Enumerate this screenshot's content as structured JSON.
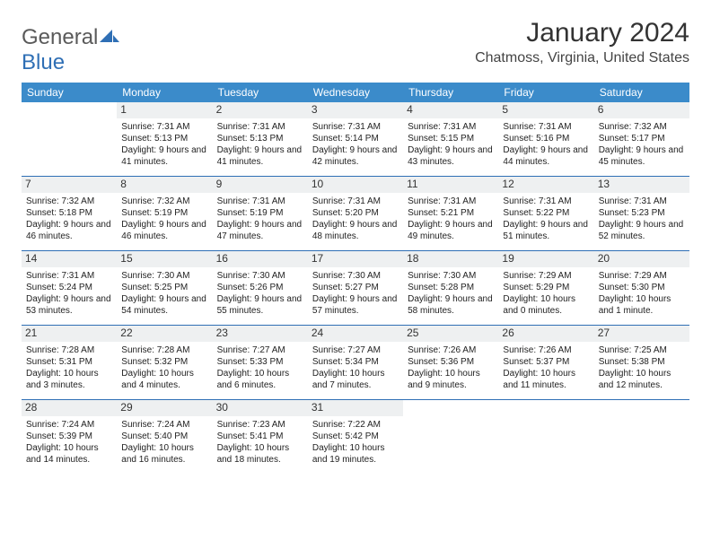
{
  "brand": {
    "general": "General",
    "blue": "Blue"
  },
  "title": "January 2024",
  "location": "Chatmoss, Virginia, United States",
  "header_bg": "#3b8bca",
  "divider_color": "#2f6fb5",
  "daynum_bg": "#eef0f1",
  "day_names": [
    "Sunday",
    "Monday",
    "Tuesday",
    "Wednesday",
    "Thursday",
    "Friday",
    "Saturday"
  ],
  "weeks": [
    [
      {
        "n": "",
        "sr": "",
        "ss": "",
        "dl": ""
      },
      {
        "n": "1",
        "sr": "Sunrise: 7:31 AM",
        "ss": "Sunset: 5:13 PM",
        "dl": "Daylight: 9 hours and 41 minutes."
      },
      {
        "n": "2",
        "sr": "Sunrise: 7:31 AM",
        "ss": "Sunset: 5:13 PM",
        "dl": "Daylight: 9 hours and 41 minutes."
      },
      {
        "n": "3",
        "sr": "Sunrise: 7:31 AM",
        "ss": "Sunset: 5:14 PM",
        "dl": "Daylight: 9 hours and 42 minutes."
      },
      {
        "n": "4",
        "sr": "Sunrise: 7:31 AM",
        "ss": "Sunset: 5:15 PM",
        "dl": "Daylight: 9 hours and 43 minutes."
      },
      {
        "n": "5",
        "sr": "Sunrise: 7:31 AM",
        "ss": "Sunset: 5:16 PM",
        "dl": "Daylight: 9 hours and 44 minutes."
      },
      {
        "n": "6",
        "sr": "Sunrise: 7:32 AM",
        "ss": "Sunset: 5:17 PM",
        "dl": "Daylight: 9 hours and 45 minutes."
      }
    ],
    [
      {
        "n": "7",
        "sr": "Sunrise: 7:32 AM",
        "ss": "Sunset: 5:18 PM",
        "dl": "Daylight: 9 hours and 46 minutes."
      },
      {
        "n": "8",
        "sr": "Sunrise: 7:32 AM",
        "ss": "Sunset: 5:19 PM",
        "dl": "Daylight: 9 hours and 46 minutes."
      },
      {
        "n": "9",
        "sr": "Sunrise: 7:31 AM",
        "ss": "Sunset: 5:19 PM",
        "dl": "Daylight: 9 hours and 47 minutes."
      },
      {
        "n": "10",
        "sr": "Sunrise: 7:31 AM",
        "ss": "Sunset: 5:20 PM",
        "dl": "Daylight: 9 hours and 48 minutes."
      },
      {
        "n": "11",
        "sr": "Sunrise: 7:31 AM",
        "ss": "Sunset: 5:21 PM",
        "dl": "Daylight: 9 hours and 49 minutes."
      },
      {
        "n": "12",
        "sr": "Sunrise: 7:31 AM",
        "ss": "Sunset: 5:22 PM",
        "dl": "Daylight: 9 hours and 51 minutes."
      },
      {
        "n": "13",
        "sr": "Sunrise: 7:31 AM",
        "ss": "Sunset: 5:23 PM",
        "dl": "Daylight: 9 hours and 52 minutes."
      }
    ],
    [
      {
        "n": "14",
        "sr": "Sunrise: 7:31 AM",
        "ss": "Sunset: 5:24 PM",
        "dl": "Daylight: 9 hours and 53 minutes."
      },
      {
        "n": "15",
        "sr": "Sunrise: 7:30 AM",
        "ss": "Sunset: 5:25 PM",
        "dl": "Daylight: 9 hours and 54 minutes."
      },
      {
        "n": "16",
        "sr": "Sunrise: 7:30 AM",
        "ss": "Sunset: 5:26 PM",
        "dl": "Daylight: 9 hours and 55 minutes."
      },
      {
        "n": "17",
        "sr": "Sunrise: 7:30 AM",
        "ss": "Sunset: 5:27 PM",
        "dl": "Daylight: 9 hours and 57 minutes."
      },
      {
        "n": "18",
        "sr": "Sunrise: 7:30 AM",
        "ss": "Sunset: 5:28 PM",
        "dl": "Daylight: 9 hours and 58 minutes."
      },
      {
        "n": "19",
        "sr": "Sunrise: 7:29 AM",
        "ss": "Sunset: 5:29 PM",
        "dl": "Daylight: 10 hours and 0 minutes."
      },
      {
        "n": "20",
        "sr": "Sunrise: 7:29 AM",
        "ss": "Sunset: 5:30 PM",
        "dl": "Daylight: 10 hours and 1 minute."
      }
    ],
    [
      {
        "n": "21",
        "sr": "Sunrise: 7:28 AM",
        "ss": "Sunset: 5:31 PM",
        "dl": "Daylight: 10 hours and 3 minutes."
      },
      {
        "n": "22",
        "sr": "Sunrise: 7:28 AM",
        "ss": "Sunset: 5:32 PM",
        "dl": "Daylight: 10 hours and 4 minutes."
      },
      {
        "n": "23",
        "sr": "Sunrise: 7:27 AM",
        "ss": "Sunset: 5:33 PM",
        "dl": "Daylight: 10 hours and 6 minutes."
      },
      {
        "n": "24",
        "sr": "Sunrise: 7:27 AM",
        "ss": "Sunset: 5:34 PM",
        "dl": "Daylight: 10 hours and 7 minutes."
      },
      {
        "n": "25",
        "sr": "Sunrise: 7:26 AM",
        "ss": "Sunset: 5:36 PM",
        "dl": "Daylight: 10 hours and 9 minutes."
      },
      {
        "n": "26",
        "sr": "Sunrise: 7:26 AM",
        "ss": "Sunset: 5:37 PM",
        "dl": "Daylight: 10 hours and 11 minutes."
      },
      {
        "n": "27",
        "sr": "Sunrise: 7:25 AM",
        "ss": "Sunset: 5:38 PM",
        "dl": "Daylight: 10 hours and 12 minutes."
      }
    ],
    [
      {
        "n": "28",
        "sr": "Sunrise: 7:24 AM",
        "ss": "Sunset: 5:39 PM",
        "dl": "Daylight: 10 hours and 14 minutes."
      },
      {
        "n": "29",
        "sr": "Sunrise: 7:24 AM",
        "ss": "Sunset: 5:40 PM",
        "dl": "Daylight: 10 hours and 16 minutes."
      },
      {
        "n": "30",
        "sr": "Sunrise: 7:23 AM",
        "ss": "Sunset: 5:41 PM",
        "dl": "Daylight: 10 hours and 18 minutes."
      },
      {
        "n": "31",
        "sr": "Sunrise: 7:22 AM",
        "ss": "Sunset: 5:42 PM",
        "dl": "Daylight: 10 hours and 19 minutes."
      },
      {
        "n": "",
        "sr": "",
        "ss": "",
        "dl": ""
      },
      {
        "n": "",
        "sr": "",
        "ss": "",
        "dl": ""
      },
      {
        "n": "",
        "sr": "",
        "ss": "",
        "dl": ""
      }
    ]
  ]
}
